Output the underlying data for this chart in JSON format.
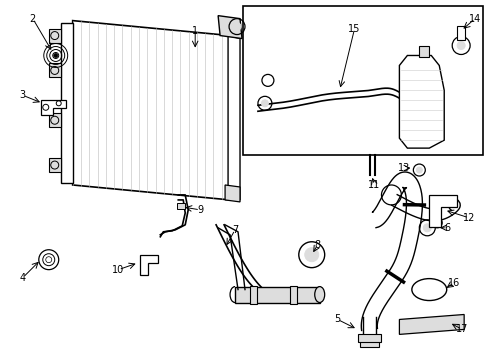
{
  "bg_color": "#ffffff",
  "line_color": "#000000",
  "gray_fill": "#aaaaaa",
  "light_gray": "#dddddd",
  "fig_width": 4.9,
  "fig_height": 3.6,
  "dpi": 100
}
